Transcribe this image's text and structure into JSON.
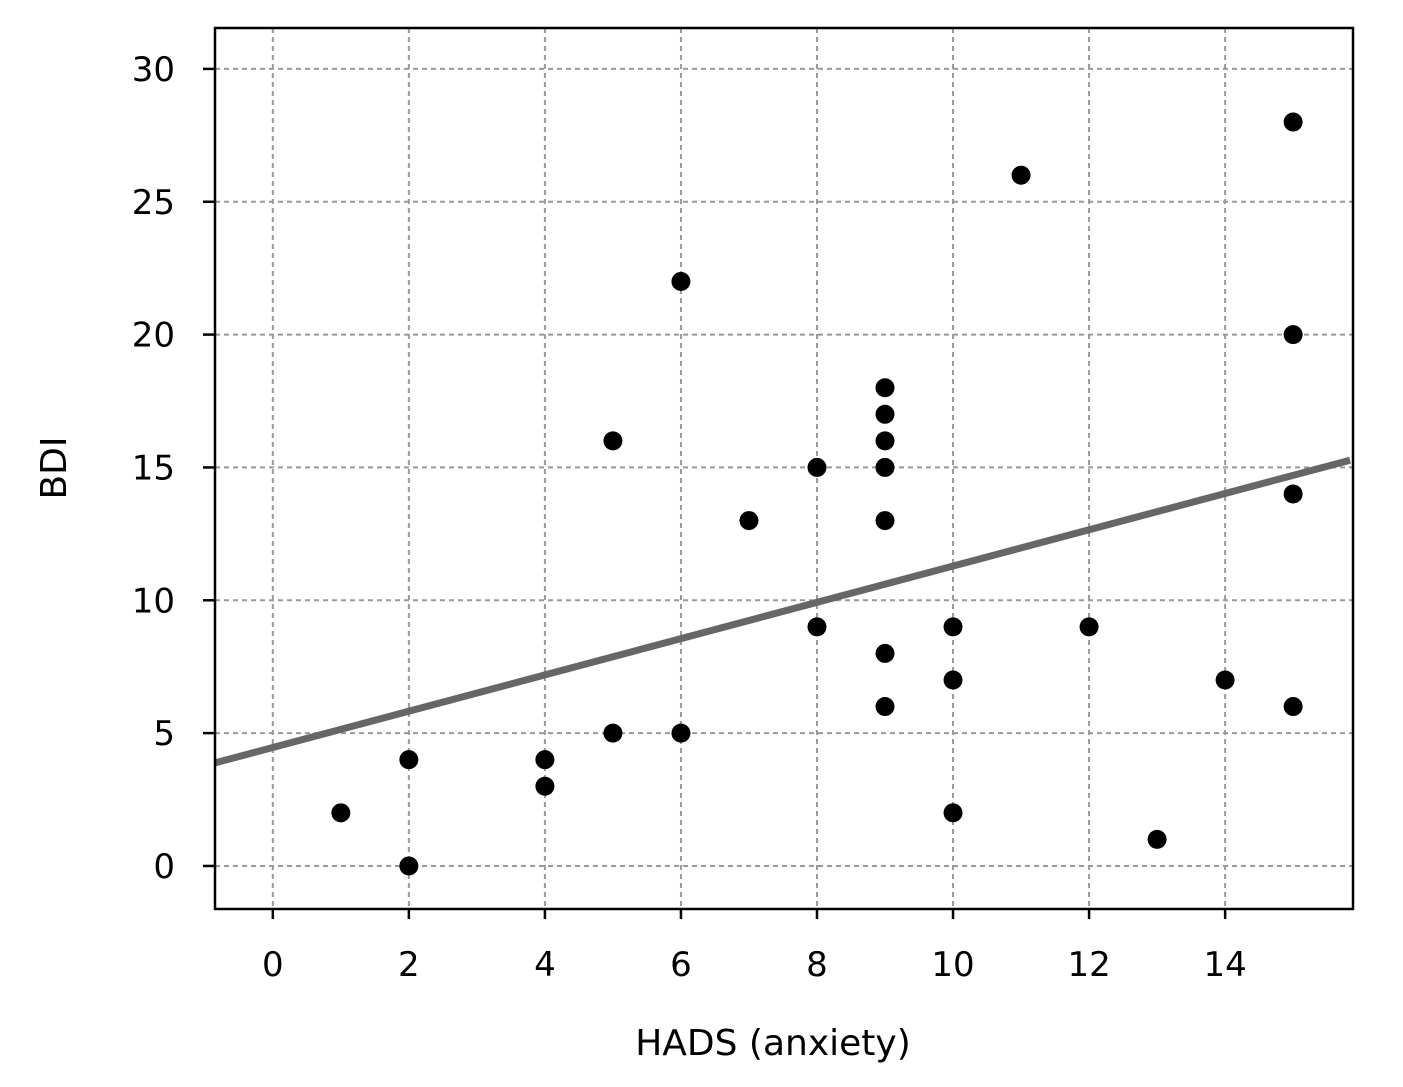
{
  "chart_data": {
    "type": "scatter",
    "title": "",
    "xlabel": "HADS (anxiety)",
    "ylabel": "BDI",
    "xlim": [
      -0.85,
      15.88
    ],
    "ylim": [
      -1.62,
      31.54
    ],
    "xticks": [
      0,
      2,
      4,
      6,
      8,
      10,
      12,
      14
    ],
    "yticks": [
      0,
      5,
      10,
      15,
      20,
      25,
      30
    ],
    "grid": true,
    "points": [
      {
        "x": 1,
        "y": 2
      },
      {
        "x": 2,
        "y": 4
      },
      {
        "x": 2,
        "y": 0
      },
      {
        "x": 4,
        "y": 4
      },
      {
        "x": 4,
        "y": 3
      },
      {
        "x": 5,
        "y": 16
      },
      {
        "x": 5,
        "y": 5
      },
      {
        "x": 6,
        "y": 22
      },
      {
        "x": 6,
        "y": 5
      },
      {
        "x": 7,
        "y": 13
      },
      {
        "x": 8,
        "y": 15
      },
      {
        "x": 8,
        "y": 9
      },
      {
        "x": 9,
        "y": 18
      },
      {
        "x": 9,
        "y": 17
      },
      {
        "x": 9,
        "y": 16
      },
      {
        "x": 9,
        "y": 15
      },
      {
        "x": 9,
        "y": 13
      },
      {
        "x": 9,
        "y": 8
      },
      {
        "x": 9,
        "y": 6
      },
      {
        "x": 10,
        "y": 9
      },
      {
        "x": 10,
        "y": 7
      },
      {
        "x": 10,
        "y": 2
      },
      {
        "x": 11,
        "y": 26
      },
      {
        "x": 12,
        "y": 9
      },
      {
        "x": 13,
        "y": 1
      },
      {
        "x": 14,
        "y": 7
      },
      {
        "x": 15,
        "y": 28
      },
      {
        "x": 15,
        "y": 20
      },
      {
        "x": 15,
        "y": 14
      },
      {
        "x": 15,
        "y": 6
      }
    ],
    "fit_line": {
      "slope": 0.683,
      "intercept": 4.46
    },
    "colors": {
      "points": "#000000",
      "line": "#666666",
      "grid": "#999999"
    }
  }
}
